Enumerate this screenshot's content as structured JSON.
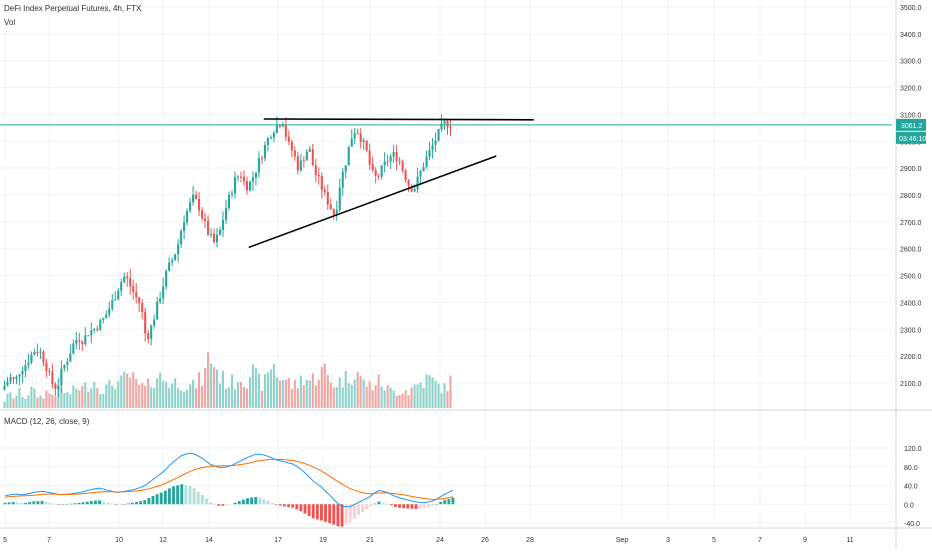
{
  "header": {
    "symbol_title": "DeFi Index Perpetual Futures, 4h, FTX",
    "volume_label": "Vol"
  },
  "macd_header": {
    "label": "MACD (12, 26, close, 9)"
  },
  "price_tag": {
    "value": "3061.2",
    "countdown": "03:46:10"
  },
  "colors": {
    "up": "#26a69a",
    "down": "#ef5350",
    "up_vol": "#8ed3ca",
    "down_vol": "#f1a6a3",
    "hist_up_strong": "#26a69a",
    "hist_up_weak": "#b2dfdb",
    "hist_down_strong": "#ef5350",
    "hist_down_weak": "#ffcdd2",
    "macd_line": "#2196f3",
    "signal_line": "#ff6d00",
    "last_price": "#26a69a",
    "trendline": "#000000"
  },
  "chart_data": [
    {
      "type": "candlestick",
      "title": "DeFi Index Perpetual Futures, 4h, FTX",
      "y_ticks": [
        "3500.0",
        "3400.0",
        "3300.0",
        "3200.0",
        "3100.0",
        "3000.0",
        "2900.0",
        "2800.0",
        "2700.0",
        "2600.0",
        "2500.0",
        "2400.0",
        "2300.0",
        "2200.0",
        "2100.0"
      ],
      "x_ticks": [
        "5",
        "7",
        "10",
        "12",
        "14",
        "17",
        "19",
        "21",
        "24",
        "26",
        "28",
        "Sep",
        "3",
        "5",
        "7",
        "9",
        "11"
      ],
      "ylim": [
        2050,
        3520
      ],
      "last_price": 3061.2,
      "trendlines": [
        {
          "name": "resistance",
          "from": [
            "Aug 16 12:00",
            3083
          ],
          "to": [
            "Aug 28 12:00",
            3080
          ]
        },
        {
          "name": "support",
          "from": [
            "Aug 15 20:00",
            2605
          ],
          "to": [
            "Aug 26 20:00",
            2945
          ]
        }
      ],
      "price_anchors": [
        2090,
        2120,
        2105,
        2150,
        2170,
        2200,
        2230,
        2210,
        2160,
        2100,
        2080,
        2150,
        2190,
        2240,
        2270,
        2260,
        2290,
        2300,
        2320,
        2340,
        2380,
        2420,
        2470,
        2500,
        2460,
        2420,
        2390,
        2260,
        2310,
        2380,
        2450,
        2520,
        2560,
        2610,
        2700,
        2750,
        2790,
        2760,
        2700,
        2650,
        2620,
        2660,
        2740,
        2800,
        2860,
        2880,
        2830,
        2850,
        2900,
        2950,
        3000,
        3040,
        3060,
        3080,
        2990,
        2960,
        2900,
        2940,
        2980,
        2890,
        2850,
        2800,
        2760,
        2720,
        2850,
        2920,
        3010,
        3050,
        3010,
        2960,
        2880,
        2860,
        2900,
        2930,
        2950,
        2940,
        2890,
        2840,
        2820,
        2870,
        2920,
        2960,
        3000,
        3040,
        3070,
        3061
      ],
      "volume_anchors": [
        0.15,
        0.25,
        0.2,
        0.3,
        0.2,
        0.35,
        0.25,
        0.2,
        0.3,
        0.25,
        0.3,
        0.35,
        0.25,
        0.3,
        0.4,
        0.35,
        0.45,
        0.5,
        0.4,
        0.35,
        0.4,
        0.5,
        0.45,
        0.55,
        0.6,
        0.45,
        0.4,
        0.35,
        0.5,
        0.6,
        0.55,
        0.5,
        0.45,
        0.5,
        0.45,
        0.4,
        0.4,
        0.5,
        0.55,
        1.0,
        0.8,
        0.6,
        0.5,
        0.45,
        0.5,
        0.6,
        0.5,
        0.7,
        0.55,
        0.45,
        0.5,
        0.9,
        0.6,
        0.55,
        0.5,
        0.4,
        0.45,
        0.6,
        0.5,
        0.55,
        0.65,
        0.7,
        0.5,
        0.45,
        0.5,
        0.55,
        0.6,
        0.75,
        0.5,
        0.45,
        0.4,
        0.5,
        0.45,
        0.35,
        0.3,
        0.3,
        0.35,
        0.3,
        0.4,
        0.45,
        0.5,
        0.55,
        0.45,
        0.4,
        0.35,
        0.5
      ]
    },
    {
      "type": "line",
      "title": "MACD (12, 26, close, 9)",
      "y_ticks": [
        "120.0",
        "80.0",
        "40.0",
        "0.0",
        "-40.0"
      ],
      "ylim": [
        -45,
        130
      ],
      "series": [
        {
          "name": "MACD",
          "values": [
            18,
            22,
            20,
            25,
            28,
            24,
            20,
            22,
            25,
            30,
            35,
            30,
            25,
            28,
            32,
            40,
            55,
            70,
            90,
            105,
            110,
            100,
            85,
            78,
            80,
            90,
            100,
            108,
            104,
            95,
            90,
            85,
            70,
            50,
            35,
            15,
            -5,
            -5,
            5,
            15,
            30,
            25,
            15,
            10,
            5,
            3,
            8,
            20,
            30
          ]
        },
        {
          "name": "Signal",
          "values": [
            15,
            17,
            18,
            19,
            21,
            22,
            21,
            21,
            22,
            24,
            26,
            27,
            26,
            27,
            28,
            31,
            36,
            43,
            52,
            62,
            72,
            78,
            81,
            82,
            82,
            84,
            87,
            92,
            95,
            96,
            95,
            93,
            88,
            80,
            70,
            57,
            44,
            33,
            26,
            22,
            24,
            24,
            22,
            19,
            15,
            12,
            10,
            12,
            16
          ]
        }
      ]
    }
  ]
}
